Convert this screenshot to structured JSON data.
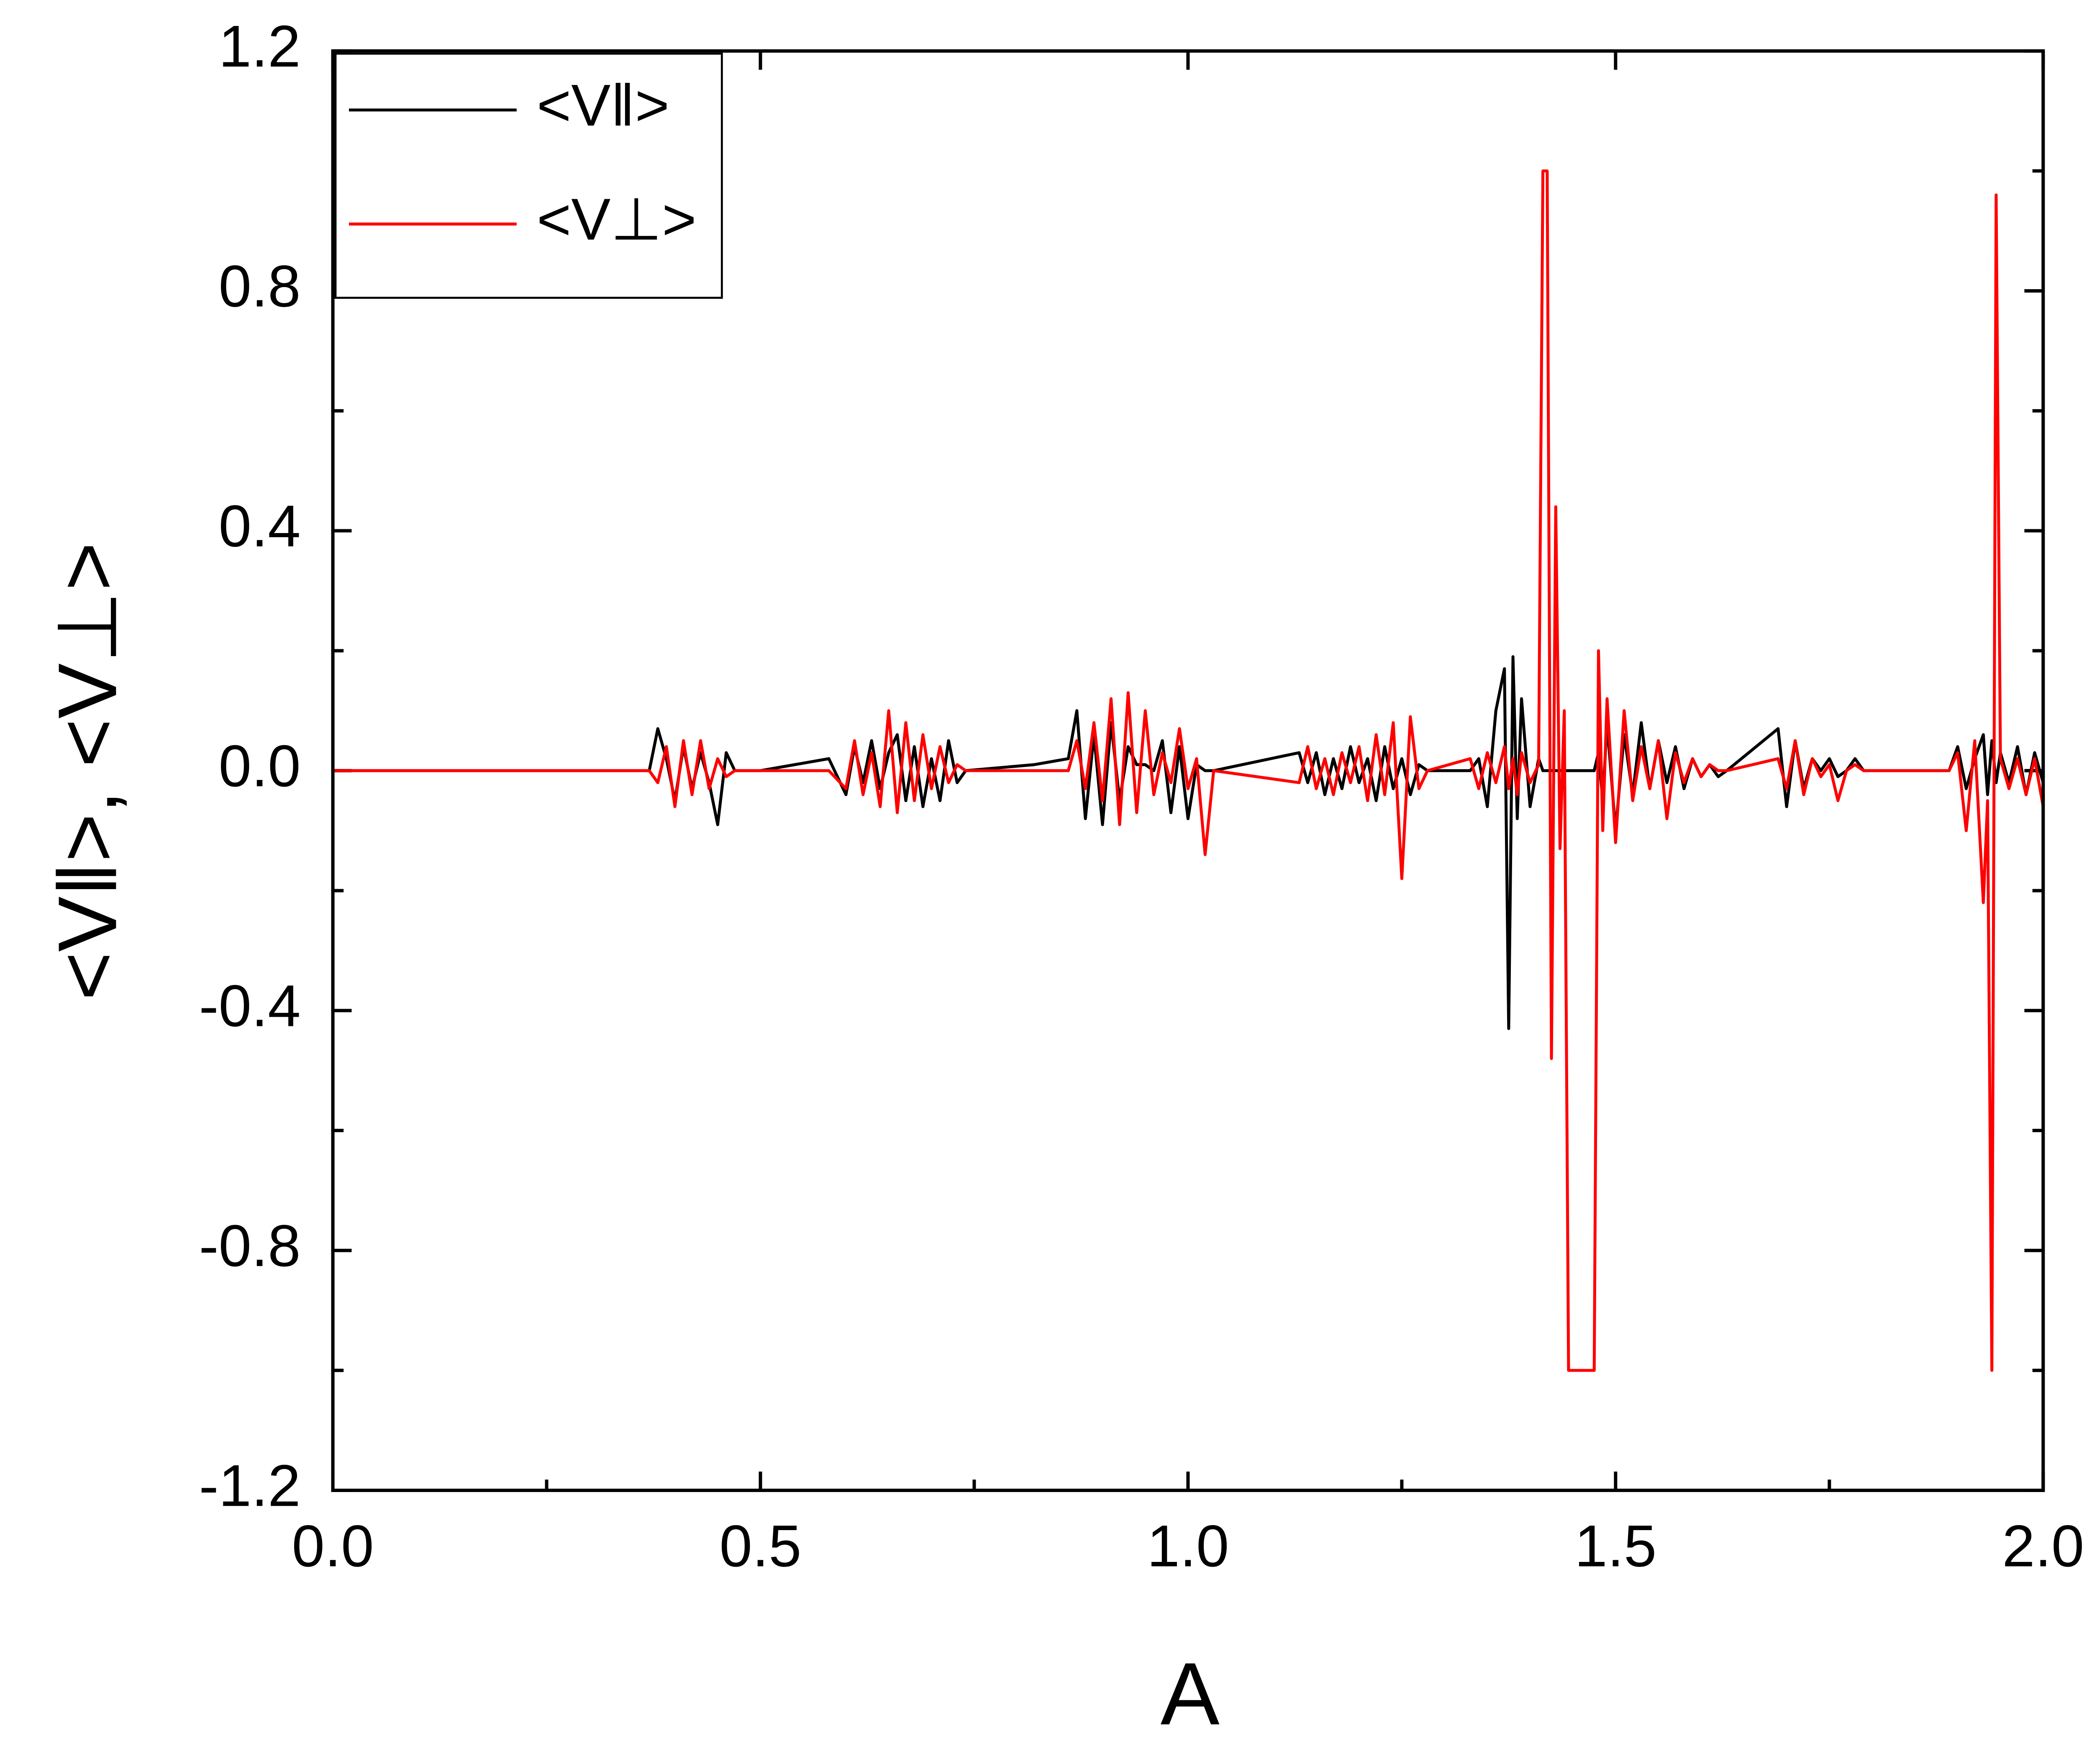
{
  "chart_data": {
    "type": "line",
    "x_label": "A",
    "y_label": "<V‖>, <V⊥>",
    "xlim": [
      0,
      2
    ],
    "ylim": [
      -1.2,
      1.2
    ],
    "xticks": [
      {
        "value": 0,
        "label": "0.0"
      },
      0.5,
      {
        "value": 1,
        "label": "1.0"
      },
      1.5,
      {
        "value": 2,
        "label": "2.0"
      }
    ],
    "yticks": [
      -1.2,
      -0.8,
      -0.4,
      {
        "value": 0,
        "label": "0.0"
      },
      0.4,
      0.8,
      1.2
    ],
    "legend": "upper left",
    "x": [
      0,
      0.1,
      0.2,
      0.3,
      0.37,
      0.38,
      0.39,
      0.4,
      0.41,
      0.42,
      0.43,
      0.44,
      0.45,
      0.46,
      0.47,
      0.5,
      0.58,
      0.6,
      0.61,
      0.62,
      0.63,
      0.64,
      0.65,
      0.66,
      0.67,
      0.68,
      0.69,
      0.7,
      0.71,
      0.72,
      0.73,
      0.74,
      0.82,
      0.86,
      0.87,
      0.88,
      0.89,
      0.9,
      0.91,
      0.92,
      0.93,
      0.94,
      0.95,
      0.96,
      0.97,
      0.98,
      0.99,
      1.0,
      1.01,
      1.02,
      1.03,
      1.13,
      1.14,
      1.15,
      1.16,
      1.17,
      1.18,
      1.19,
      1.2,
      1.21,
      1.22,
      1.23,
      1.24,
      1.25,
      1.26,
      1.27,
      1.28,
      1.33,
      1.34,
      1.35,
      1.36,
      1.37,
      1.375,
      1.38,
      1.385,
      1.39,
      1.4,
      1.41,
      1.415,
      1.42,
      1.425,
      1.43,
      1.435,
      1.44,
      1.445,
      1.45,
      1.46,
      1.47,
      1.475,
      1.48,
      1.485,
      1.49,
      1.5,
      1.51,
      1.52,
      1.53,
      1.54,
      1.55,
      1.56,
      1.57,
      1.58,
      1.59,
      1.6,
      1.61,
      1.62,
      1.63,
      1.69,
      1.7,
      1.71,
      1.72,
      1.73,
      1.74,
      1.75,
      1.76,
      1.77,
      1.78,
      1.79,
      1.89,
      1.9,
      1.91,
      1.92,
      1.93,
      1.935,
      1.94,
      1.945,
      1.95,
      1.96,
      1.97,
      1.98,
      1.99,
      2.0
    ],
    "series": [
      {
        "name": "<V‖>",
        "color": "#000000",
        "values": [
          0,
          0,
          0,
          0,
          0,
          0.07,
          0.02,
          -0.05,
          0.04,
          -0.03,
          0.03,
          -0.02,
          -0.09,
          0.03,
          0,
          0,
          0.02,
          -0.04,
          0.04,
          -0.02,
          0.05,
          -0.03,
          0.03,
          0.06,
          -0.05,
          0.04,
          -0.06,
          0.02,
          -0.05,
          0.05,
          -0.02,
          0,
          0.01,
          0.02,
          0.1,
          -0.08,
          0.06,
          -0.09,
          0.08,
          -0.05,
          0.04,
          0.01,
          0.01,
          0,
          0.05,
          -0.07,
          0.04,
          -0.08,
          0.01,
          0,
          0,
          0.03,
          -0.02,
          0.03,
          -0.04,
          0.02,
          -0.03,
          0.04,
          -0.02,
          0.02,
          -0.05,
          0.04,
          -0.03,
          0.02,
          -0.04,
          0.01,
          0,
          0,
          0.02,
          -0.06,
          0.1,
          0.17,
          -0.43,
          0.19,
          -0.08,
          0.12,
          -0.06,
          0.02,
          0,
          0,
          0,
          0,
          0,
          0,
          0,
          0,
          0,
          0,
          0,
          0.03,
          -0.05,
          0.08,
          -0.1,
          0.06,
          -0.04,
          0.08,
          -0.03,
          0.05,
          -0.02,
          0.04,
          -0.03,
          0.02,
          -0.01,
          0.01,
          -0.01,
          0,
          0.07,
          -0.06,
          0.05,
          -0.03,
          0.02,
          0,
          0.02,
          -0.01,
          0,
          0.02,
          0,
          0,
          0.04,
          -0.03,
          0.02,
          0.06,
          -0.04,
          0.05,
          -0.02,
          0.03,
          -0.02,
          0.04,
          -0.04,
          0.03,
          -0.02
        ]
      },
      {
        "name": "<V⊥>",
        "color": "#ff0000",
        "values": [
          0,
          0,
          0,
          0,
          0,
          -0.02,
          0.04,
          -0.06,
          0.05,
          -0.04,
          0.05,
          -0.03,
          0.02,
          -0.01,
          0,
          0,
          0,
          -0.03,
          0.05,
          -0.04,
          0.03,
          -0.06,
          0.1,
          -0.07,
          0.08,
          -0.05,
          0.06,
          -0.03,
          0.04,
          -0.02,
          0.01,
          0,
          0,
          0,
          0.05,
          -0.03,
          0.08,
          -0.05,
          0.12,
          -0.09,
          0.13,
          -0.07,
          0.1,
          -0.04,
          0.03,
          -0.02,
          0.07,
          -0.03,
          0.02,
          -0.14,
          0,
          -0.02,
          0.04,
          -0.03,
          0.02,
          -0.04,
          0.03,
          -0.02,
          0.04,
          -0.05,
          0.06,
          -0.04,
          0.08,
          -0.18,
          0.09,
          -0.03,
          0,
          0.02,
          -0.03,
          0.03,
          -0.02,
          0.04,
          -0.03,
          0.02,
          -0.04,
          0.03,
          -0.02,
          0.01,
          1.0,
          1.0,
          -0.48,
          0.44,
          -0.13,
          0.1,
          -1.0,
          -1.0,
          -1.0,
          -1.0,
          -1.0,
          0.2,
          -0.1,
          0.12,
          -0.12,
          0.1,
          -0.05,
          0.04,
          -0.03,
          0.05,
          -0.08,
          0.03,
          -0.02,
          0.02,
          -0.01,
          0.01,
          0,
          0,
          0.02,
          -0.03,
          0.05,
          -0.04,
          0.02,
          -0.01,
          0.01,
          -0.05,
          0,
          0.01,
          0,
          0,
          0.03,
          -0.1,
          0.05,
          -0.22,
          -0.05,
          -1.0,
          0.96,
          0.02,
          -0.03,
          0.02,
          -0.04,
          0.02,
          -0.06
        ]
      }
    ]
  }
}
